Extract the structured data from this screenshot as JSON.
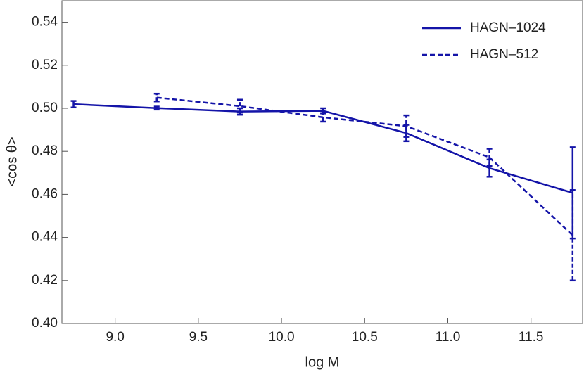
{
  "chart_data": {
    "type": "line",
    "x_label": "log M",
    "y_label": "<cos θ>",
    "xlim": [
      8.68,
      11.81
    ],
    "ylim": [
      0.4,
      0.55
    ],
    "xticks": [
      {
        "value": 9.0,
        "label": "9.0"
      },
      {
        "value": 9.5,
        "label": "9.5"
      },
      {
        "value": 10.0,
        "label": "10.0"
      },
      {
        "value": 10.5,
        "label": "10.5"
      },
      {
        "value": 11.0,
        "label": "11.0"
      },
      {
        "value": 11.5,
        "label": "11.5"
      }
    ],
    "yticks": [
      {
        "value": 0.4,
        "label": "0.40"
      },
      {
        "value": 0.42,
        "label": "0.42"
      },
      {
        "value": 0.44,
        "label": "0.44"
      },
      {
        "value": 0.46,
        "label": "0.46"
      },
      {
        "value": 0.48,
        "label": "0.48"
      },
      {
        "value": 0.5,
        "label": "0.50"
      },
      {
        "value": 0.52,
        "label": "0.52"
      },
      {
        "value": 0.54,
        "label": "0.54"
      }
    ],
    "legend": "top-right",
    "series": [
      {
        "name": "HAGN–1024",
        "color": "#1414a8",
        "dash": false,
        "x": [
          8.75,
          9.25,
          9.75,
          10.25,
          10.75,
          11.25,
          11.75
        ],
        "values": [
          0.5019,
          0.5001,
          0.4985,
          0.4988,
          0.4885,
          0.4722,
          0.4607
        ],
        "errors": [
          0.0015,
          0.0007,
          0.0015,
          0.0012,
          0.0038,
          0.004,
          0.0212
        ]
      },
      {
        "name": "HAGN–512",
        "color": "#1414a8",
        "dash": true,
        "x": [
          9.25,
          9.75,
          10.25,
          10.75,
          11.25
        ],
        "values": [
          0.505,
          0.501,
          0.4958,
          0.4917,
          0.4772
        ],
        "errors": [
          0.0018,
          0.003,
          0.002,
          0.005,
          0.004
        ]
      },
      {
        "name": null,
        "color": "#1414a8",
        "dash": true,
        "x": [
          11.25,
          11.75
        ],
        "values": [
          0.4772,
          0.441
        ],
        "errors": [
          null,
          0.021
        ]
      }
    ]
  }
}
